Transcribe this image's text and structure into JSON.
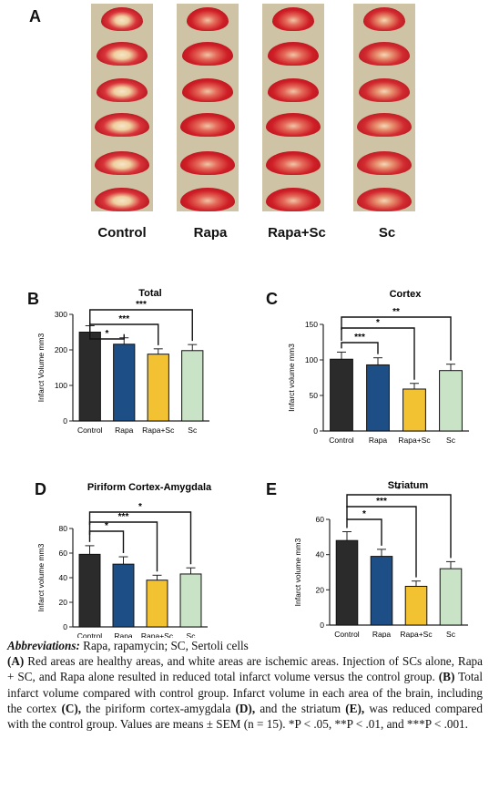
{
  "panel_labels": {
    "a": "A",
    "b": "B",
    "c": "C",
    "d": "D",
    "e": "E"
  },
  "photo_groups": [
    "Control",
    "Rapa",
    "Rapa+Sc",
    "Sc"
  ],
  "colors": {
    "control": "#2b2b2b",
    "rapa": "#1d4e85",
    "rapa_sc": "#f2c232",
    "sc": "#c9e3c6"
  },
  "chart_data": [
    {
      "panel": "B",
      "type": "bar",
      "title": "Total",
      "ylabel": "Infarct Volume mm3",
      "categories": [
        "Control",
        "Rapa",
        "Rapa+Sc",
        "Sc"
      ],
      "values": [
        250,
        216,
        188,
        198
      ],
      "errors": [
        18,
        18,
        15,
        17
      ],
      "ylim": [
        0,
        300
      ],
      "yticks": [
        "0",
        "100",
        "200",
        "300"
      ],
      "significance": [
        "*",
        "***",
        "***"
      ]
    },
    {
      "panel": "C",
      "type": "bar",
      "title": "Cortex",
      "ylabel": "Infarct volume mm3",
      "categories": [
        "Control",
        "Rapa",
        "Rapa+Sc",
        "Sc"
      ],
      "values": [
        101,
        93,
        59,
        85
      ],
      "errors": [
        10,
        10,
        8,
        9
      ],
      "ylim": [
        0,
        150
      ],
      "yticks": [
        "0",
        "50",
        "100",
        "150"
      ],
      "significance": [
        "***",
        "*",
        "**"
      ]
    },
    {
      "panel": "D",
      "type": "bar",
      "title": "Piriform Cortex-Amygdala",
      "ylabel": "Infarct volume mm3",
      "categories": [
        "Control",
        "Rapa",
        "Rapa+Sc",
        "Sc"
      ],
      "values": [
        59,
        51,
        38,
        43
      ],
      "errors": [
        7,
        6,
        4,
        5
      ],
      "ylim": [
        0,
        80
      ],
      "yticks": [
        "0",
        "20",
        "40",
        "60",
        "80"
      ],
      "significance": [
        "*",
        "***",
        "*"
      ]
    },
    {
      "panel": "E",
      "type": "bar",
      "title": "Striatum",
      "ylabel": "Infarct volume mm3",
      "categories": [
        "Control",
        "Rapa",
        "Rapa+Sc",
        "Sc"
      ],
      "values": [
        48,
        39,
        22,
        32
      ],
      "errors": [
        5,
        4,
        3,
        4
      ],
      "ylim": [
        0,
        60
      ],
      "yticks": [
        "0",
        "20",
        "40",
        "60"
      ],
      "significance": [
        "*",
        "***",
        "*"
      ]
    }
  ],
  "caption": {
    "abbr_head": "Abbreviations:",
    "abbr_text": " Rapa, rapamycin; SC, Sertoli cells",
    "a_label": "(A)",
    "a_text": " Red areas are healthy areas, and white areas are ischemic areas. Injection of SCs alone, Rapa + SC, and Rapa alone resulted in reduced total infarct volume versus the control group. ",
    "b_label": "(B)",
    "b_text": " Total infarct volume compared with control group. Infarct volume in each area of the brain, including the cortex ",
    "c_label": "(C),",
    "c_text": " the piriform cortex-amygdala ",
    "d_label": "(D),",
    "d_text": " and the striatum ",
    "e_label": "(E),",
    "e_text": " was reduced compared with the control group. Values are means ± SEM (n = 15). *P < .05, **P < .01, and ***P < .001."
  }
}
